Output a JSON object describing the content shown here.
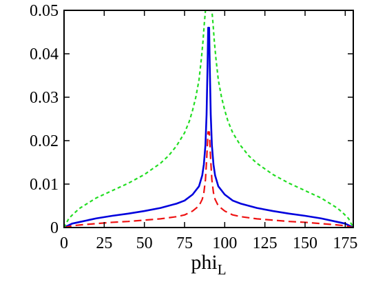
{
  "chart_data": {
    "type": "line",
    "xlabel": "phi",
    "xlabel_sub": "L",
    "ylabel": "",
    "xlim": [
      0,
      180
    ],
    "ylim": [
      0,
      0.05
    ],
    "x_ticks": [
      0,
      25,
      50,
      75,
      100,
      125,
      150,
      175
    ],
    "x_tick_labels": [
      "0",
      "25",
      "50",
      "75",
      "100",
      "125",
      "150",
      "175"
    ],
    "y_ticks": [
      0,
      0.01,
      0.02,
      0.03,
      0.04,
      0.05
    ],
    "y_tick_labels": [
      "0",
      "0.01",
      "0.02",
      "0.03",
      "0.04",
      "0.05"
    ],
    "grid": false,
    "series": [
      {
        "style": "solid",
        "color": "#0000dd",
        "points": [
          [
            0,
            0
          ],
          [
            5,
            0.0009
          ],
          [
            10,
            0.0013
          ],
          [
            20,
            0.0021
          ],
          [
            30,
            0.0027
          ],
          [
            40,
            0.0032
          ],
          [
            50,
            0.0038
          ],
          [
            60,
            0.0045
          ],
          [
            70,
            0.0055
          ],
          [
            75,
            0.0062
          ],
          [
            80,
            0.0076
          ],
          [
            84,
            0.0095
          ],
          [
            86,
            0.012
          ],
          [
            87,
            0.0145
          ],
          [
            88,
            0.019
          ],
          [
            88.7,
            0.026
          ],
          [
            89.3,
            0.037
          ],
          [
            89.7,
            0.046
          ],
          [
            90.3,
            0.046
          ],
          [
            90.7,
            0.037
          ],
          [
            91.3,
            0.026
          ],
          [
            92,
            0.019
          ],
          [
            93,
            0.0145
          ],
          [
            94,
            0.012
          ],
          [
            96,
            0.0095
          ],
          [
            100,
            0.0076
          ],
          [
            105,
            0.0062
          ],
          [
            110,
            0.0055
          ],
          [
            120,
            0.0045
          ],
          [
            130,
            0.0038
          ],
          [
            140,
            0.0032
          ],
          [
            150,
            0.0027
          ],
          [
            160,
            0.0021
          ],
          [
            170,
            0.0013
          ],
          [
            175,
            0.0009
          ],
          [
            180,
            0
          ]
        ]
      },
      {
        "style": "dashed",
        "color": "#ee1111",
        "points": [
          [
            0,
            0
          ],
          [
            5,
            0.0004
          ],
          [
            10,
            0.0006
          ],
          [
            20,
            0.0009
          ],
          [
            30,
            0.0012
          ],
          [
            40,
            0.0014
          ],
          [
            50,
            0.0017
          ],
          [
            60,
            0.002
          ],
          [
            70,
            0.0025
          ],
          [
            75,
            0.0029
          ],
          [
            80,
            0.0038
          ],
          [
            84,
            0.005
          ],
          [
            86,
            0.0065
          ],
          [
            87,
            0.008
          ],
          [
            88,
            0.011
          ],
          [
            88.8,
            0.016
          ],
          [
            89.6,
            0.022
          ],
          [
            90.4,
            0.022
          ],
          [
            91.2,
            0.016
          ],
          [
            92,
            0.011
          ],
          [
            93,
            0.008
          ],
          [
            94,
            0.0065
          ],
          [
            96,
            0.005
          ],
          [
            100,
            0.0038
          ],
          [
            105,
            0.0029
          ],
          [
            110,
            0.0025
          ],
          [
            120,
            0.002
          ],
          [
            130,
            0.0017
          ],
          [
            140,
            0.0014
          ],
          [
            150,
            0.0012
          ],
          [
            160,
            0.0009
          ],
          [
            170,
            0.0006
          ],
          [
            175,
            0.0004
          ],
          [
            180,
            0
          ]
        ]
      },
      {
        "style": "dotted",
        "color": "#22dd22",
        "points": [
          [
            0,
            0
          ],
          [
            3,
            0.0021
          ],
          [
            6,
            0.0032
          ],
          [
            10,
            0.0045
          ],
          [
            20,
            0.0068
          ],
          [
            30,
            0.0085
          ],
          [
            40,
            0.0102
          ],
          [
            50,
            0.0122
          ],
          [
            60,
            0.0148
          ],
          [
            65,
            0.0165
          ],
          [
            70,
            0.0188
          ],
          [
            75,
            0.0218
          ],
          [
            78,
            0.0245
          ],
          [
            80,
            0.027
          ],
          [
            82,
            0.03
          ],
          [
            84,
            0.034
          ],
          [
            85.5,
            0.039
          ],
          [
            86.5,
            0.043
          ],
          [
            87.3,
            0.047
          ],
          [
            88,
            0.05
          ],
          [
            92,
            0.05
          ],
          [
            92.7,
            0.047
          ],
          [
            93.5,
            0.043
          ],
          [
            94.5,
            0.039
          ],
          [
            96,
            0.034
          ],
          [
            98,
            0.03
          ],
          [
            100,
            0.027
          ],
          [
            102,
            0.0245
          ],
          [
            105,
            0.0218
          ],
          [
            110,
            0.0188
          ],
          [
            115,
            0.0165
          ],
          [
            120,
            0.0148
          ],
          [
            130,
            0.0122
          ],
          [
            140,
            0.0102
          ],
          [
            150,
            0.0085
          ],
          [
            160,
            0.0068
          ],
          [
            170,
            0.0045
          ],
          [
            174,
            0.0032
          ],
          [
            177,
            0.0021
          ],
          [
            180,
            0
          ]
        ]
      }
    ]
  }
}
